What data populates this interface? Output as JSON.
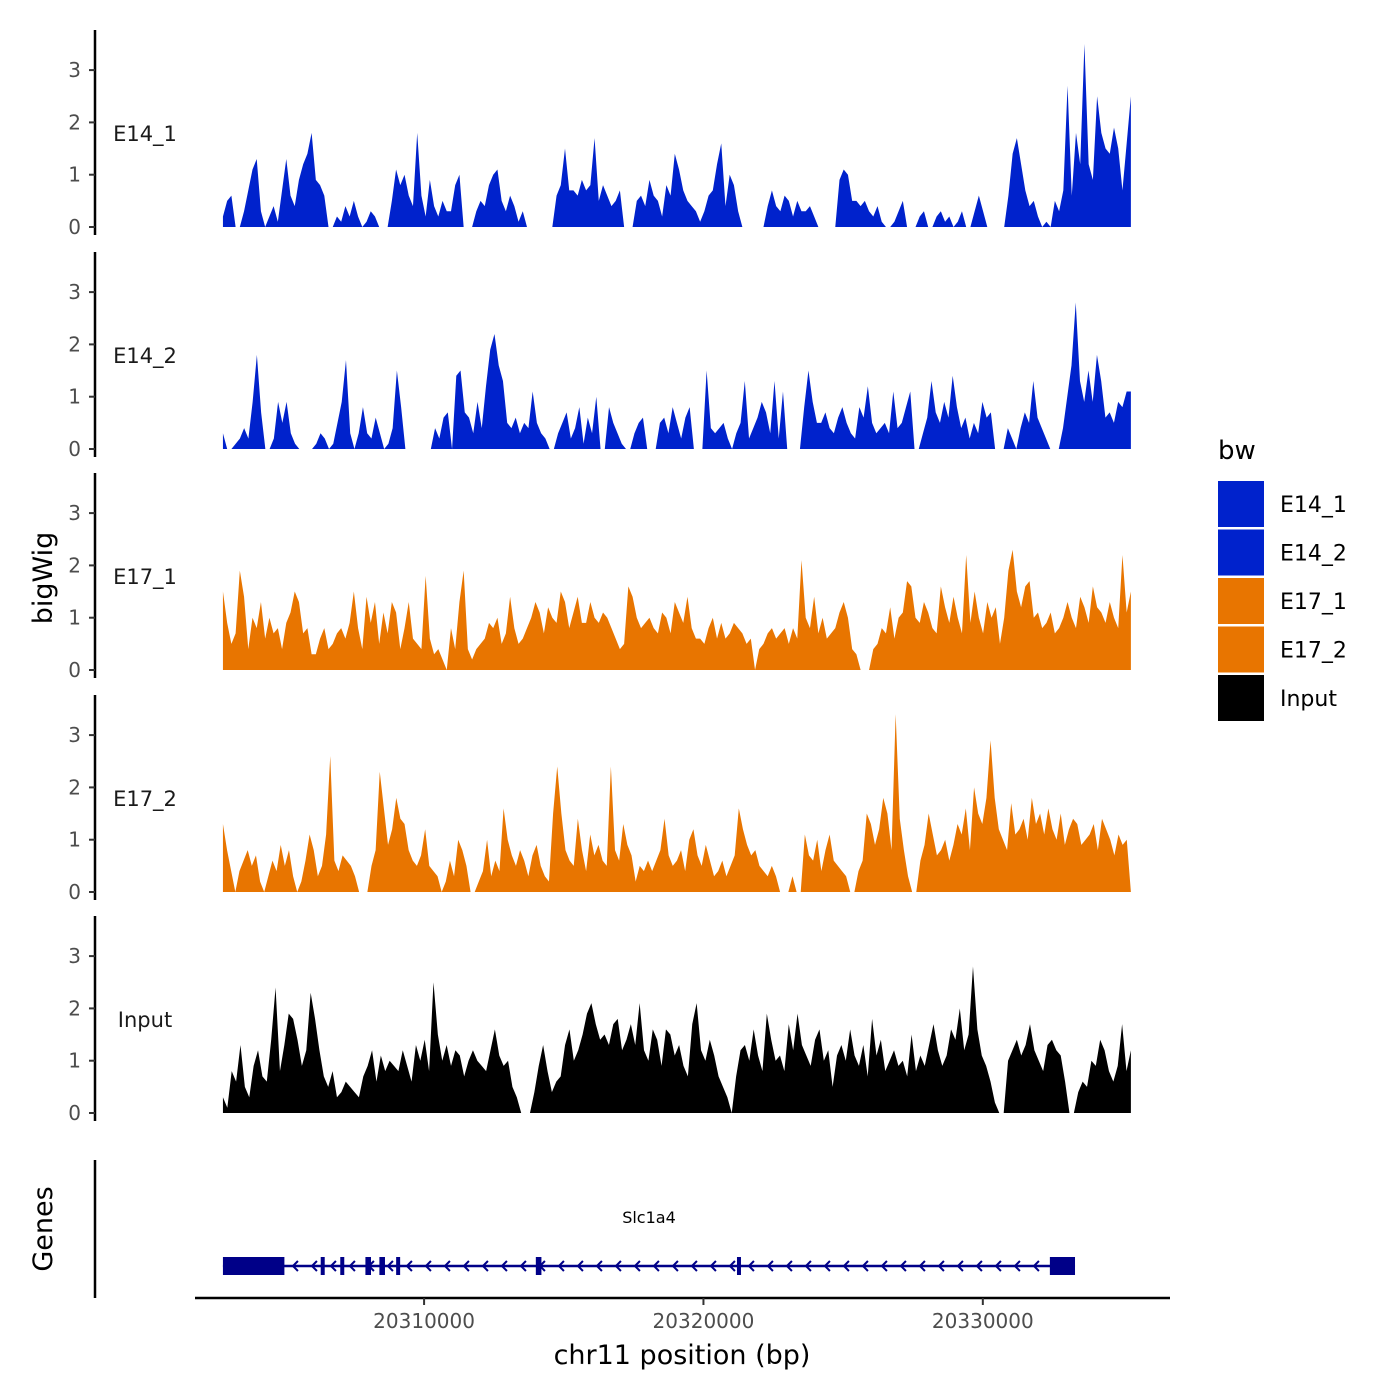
{
  "colors": {
    "E14": "#0022cc",
    "E17": "#e87500",
    "Input": "#000000",
    "gene": "#000088",
    "axis": "#000000",
    "tick_text": "#4d4d4d"
  },
  "chart_data": {
    "type": "area",
    "chromosome": "chr11",
    "xlabel": "chr11 position (bp)",
    "ylabel": "bigWig",
    "genes_label": "Genes",
    "xlim": [
      20301800,
      20336700
    ],
    "x_range_data": [
      20302800,
      20335300
    ],
    "x_ticks": [
      20310000,
      20320000,
      20330000
    ],
    "x_tick_labels": [
      "20310000",
      "20320000",
      "20330000"
    ],
    "ylim": [
      0,
      3.8
    ],
    "y_ticks": [
      0,
      1,
      2,
      3
    ],
    "y_tick_labels": [
      "0",
      "1",
      "2",
      "3"
    ],
    "legend": {
      "title": "bw",
      "entries": [
        {
          "label": "E14_1",
          "color": "#0022cc"
        },
        {
          "label": "E14_2",
          "color": "#0022cc"
        },
        {
          "label": "E17_1",
          "color": "#e87500"
        },
        {
          "label": "E17_2",
          "color": "#e87500"
        },
        {
          "label": "Input",
          "color": "#000000"
        }
      ]
    },
    "series": [
      {
        "name": "E14_1",
        "color": "#0022cc",
        "values": [
          0.2,
          0.5,
          0.6,
          0.0,
          0.0,
          0.3,
          0.7,
          1.1,
          1.3,
          0.3,
          0.0,
          0.2,
          0.4,
          0.1,
          0.7,
          1.3,
          0.6,
          0.4,
          0.9,
          1.2,
          1.4,
          1.8,
          0.9,
          0.8,
          0.6,
          0.0,
          0.0,
          0.2,
          0.1,
          0.4,
          0.2,
          0.5,
          0.2,
          0.0,
          0.1,
          0.3,
          0.2,
          0.0,
          0.0,
          0.0,
          0.5,
          1.1,
          0.8,
          1.0,
          0.6,
          0.4,
          1.8,
          0.6,
          0.2,
          0.9,
          0.4,
          0.2,
          0.5,
          0.3,
          0.3,
          0.8,
          1.0,
          0.0,
          0.0,
          0.0,
          0.3,
          0.5,
          0.4,
          0.8,
          1.0,
          1.1,
          0.5,
          0.3,
          0.6,
          0.4,
          0.1,
          0.3,
          0.0,
          0.0,
          0.0,
          0.0,
          0.0,
          0.0,
          0.0,
          0.6,
          0.8,
          1.5,
          0.7,
          0.7,
          0.6,
          0.9,
          0.7,
          0.8,
          1.7,
          0.5,
          0.8,
          0.6,
          0.4,
          0.5,
          0.7,
          0.0,
          0.0,
          0.0,
          0.5,
          0.6,
          0.4,
          0.9,
          0.6,
          0.5,
          0.2,
          0.8,
          0.6,
          1.4,
          1.1,
          0.7,
          0.5,
          0.4,
          0.3,
          0.1,
          0.3,
          0.6,
          0.7,
          1.2,
          1.6,
          0.4,
          1.0,
          0.8,
          0.3,
          0.0,
          0.0,
          0.0,
          0.0,
          0.0,
          0.0,
          0.4,
          0.7,
          0.4,
          0.3,
          0.6,
          0.5,
          0.2,
          0.5,
          0.3,
          0.3,
          0.4,
          0.2,
          0.0,
          0.0,
          0.0,
          0.0,
          0.0,
          0.9,
          1.1,
          1.0,
          0.5,
          0.5,
          0.4,
          0.5,
          0.3,
          0.2,
          0.4,
          0.1,
          0.0,
          0.0,
          0.1,
          0.3,
          0.5,
          0.0,
          0.0,
          0.0,
          0.2,
          0.3,
          0.0,
          0.0,
          0.2,
          0.3,
          0.1,
          0.2,
          0.0,
          0.1,
          0.3,
          0.0,
          0.0,
          0.3,
          0.6,
          0.3,
          0.0,
          0.0,
          0.0,
          0.0,
          0.0,
          0.6,
          1.4,
          1.7,
          1.2,
          0.7,
          0.4,
          0.5,
          0.2,
          0.0,
          0.1,
          0.0,
          0.5,
          0.3,
          0.7,
          2.7,
          0.6,
          1.8,
          1.2,
          3.5,
          1.2,
          0.9,
          2.5,
          1.8,
          1.5,
          1.4,
          1.9,
          1.5,
          0.7,
          1.6,
          2.5
        ],
        "area_breaks_count": 0
      },
      {
        "name": "E14_2",
        "color": "#0022cc",
        "values": [
          0.3,
          0.0,
          0.0,
          0.1,
          0.2,
          0.4,
          0.2,
          0.9,
          1.8,
          0.7,
          0.0,
          0.0,
          0.2,
          0.9,
          0.5,
          0.9,
          0.3,
          0.1,
          0.0,
          0.0,
          0.0,
          0.0,
          0.1,
          0.3,
          0.2,
          0.0,
          0.1,
          0.5,
          0.9,
          1.7,
          0.3,
          0.0,
          0.3,
          0.8,
          0.3,
          0.2,
          0.6,
          0.3,
          0.0,
          0.1,
          0.4,
          1.5,
          0.8,
          0.0,
          0.0,
          0.0,
          0.0,
          0.0,
          0.0,
          0.0,
          0.4,
          0.2,
          0.6,
          0.7,
          0.0,
          1.4,
          1.5,
          0.7,
          0.6,
          0.3,
          0.9,
          0.4,
          1.2,
          1.9,
          2.2,
          1.6,
          1.3,
          0.5,
          0.4,
          0.6,
          0.3,
          0.5,
          0.4,
          1.1,
          0.5,
          0.3,
          0.2,
          0.0,
          0.0,
          0.3,
          0.5,
          0.7,
          0.2,
          0.4,
          0.8,
          0.1,
          0.6,
          0.3,
          1.0,
          0.0,
          0.0,
          0.8,
          0.5,
          0.3,
          0.1,
          0.0,
          0.0,
          0.3,
          0.5,
          0.6,
          0.0,
          0.0,
          0.0,
          0.5,
          0.6,
          0.3,
          0.8,
          0.5,
          0.2,
          0.6,
          0.8,
          0.0,
          0.0,
          0.0,
          1.5,
          0.4,
          0.3,
          0.4,
          0.5,
          0.2,
          0.0,
          0.3,
          0.5,
          1.3,
          0.2,
          0.4,
          0.6,
          0.9,
          0.7,
          0.3,
          1.3,
          0.2,
          1.1,
          0.0,
          0.0,
          0.0,
          0.0,
          0.8,
          1.5,
          0.9,
          0.5,
          0.5,
          0.7,
          0.4,
          0.3,
          0.6,
          0.8,
          0.5,
          0.3,
          0.2,
          0.8,
          0.6,
          1.2,
          0.5,
          0.3,
          0.4,
          0.5,
          0.3,
          1.1,
          0.4,
          0.5,
          0.8,
          1.1,
          0.0,
          0.0,
          0.3,
          0.6,
          1.3,
          0.7,
          0.5,
          0.9,
          0.6,
          1.4,
          0.8,
          0.4,
          0.6,
          0.2,
          0.5,
          0.3,
          0.9,
          0.6,
          0.7,
          0.0,
          0.0,
          0.0,
          0.4,
          0.2,
          0.0,
          0.4,
          0.7,
          0.5,
          1.3,
          0.6,
          0.4,
          0.2,
          0.0,
          0.0,
          0.0,
          0.4,
          1.0,
          1.6,
          2.8,
          1.3,
          0.9,
          1.5,
          0.9,
          1.8,
          1.3,
          0.6,
          0.7,
          0.5,
          0.9,
          0.8,
          1.1,
          1.1
        ],
        "area_breaks_count": 0
      },
      {
        "name": "E17_1",
        "color": "#e87500",
        "values": [
          1.5,
          0.9,
          0.5,
          0.7,
          1.9,
          1.4,
          0.4,
          1.0,
          0.8,
          1.3,
          0.6,
          1.0,
          0.7,
          0.8,
          0.4,
          0.9,
          1.1,
          1.5,
          1.3,
          0.7,
          0.8,
          0.3,
          0.3,
          0.6,
          0.8,
          0.4,
          0.5,
          0.7,
          0.8,
          0.6,
          0.9,
          1.5,
          0.8,
          0.4,
          1.4,
          0.9,
          1.3,
          0.5,
          1.1,
          0.7,
          1.3,
          1.1,
          0.4,
          0.8,
          1.3,
          0.6,
          0.5,
          0.4,
          1.8,
          0.6,
          0.3,
          0.4,
          0.2,
          0.0,
          0.8,
          0.4,
          1.3,
          1.9,
          0.4,
          0.2,
          0.4,
          0.5,
          0.6,
          0.9,
          0.8,
          1.0,
          0.5,
          0.7,
          1.4,
          0.8,
          0.5,
          0.6,
          0.8,
          1.0,
          1.3,
          1.1,
          0.7,
          1.2,
          1.0,
          0.9,
          1.5,
          1.3,
          0.8,
          1.1,
          1.4,
          0.9,
          0.9,
          1.3,
          1.0,
          0.9,
          1.1,
          1.0,
          0.8,
          0.6,
          0.4,
          0.5,
          1.6,
          1.4,
          1.0,
          0.8,
          0.9,
          1.0,
          0.8,
          0.7,
          1.1,
          1.0,
          0.7,
          1.3,
          1.1,
          0.9,
          1.4,
          0.8,
          0.6,
          0.6,
          0.5,
          0.8,
          1.0,
          0.6,
          0.9,
          0.6,
          0.7,
          0.9,
          0.8,
          0.7,
          0.5,
          0.6,
          0.0,
          0.4,
          0.5,
          0.7,
          0.8,
          0.6,
          0.7,
          0.8,
          0.5,
          0.8,
          0.6,
          2.1,
          1.0,
          0.8,
          1.4,
          0.7,
          1.0,
          0.6,
          0.7,
          0.8,
          1.1,
          1.3,
          1.0,
          0.4,
          0.3,
          0.0,
          0.0,
          0.0,
          0.4,
          0.5,
          0.8,
          0.7,
          1.2,
          0.6,
          1.0,
          1.1,
          1.7,
          1.6,
          1.0,
          0.9,
          1.3,
          1.1,
          0.8,
          0.7,
          1.6,
          1.2,
          0.9,
          1.4,
          1.0,
          0.7,
          2.2,
          0.9,
          1.5,
          1.0,
          0.7,
          1.3,
          1.0,
          1.2,
          0.5,
          1.0,
          1.9,
          2.3,
          1.5,
          1.2,
          1.6,
          1.7,
          1.0,
          1.1,
          0.8,
          0.9,
          1.1,
          0.7,
          0.8,
          1.0,
          1.3,
          1.0,
          0.8,
          1.4,
          1.2,
          0.9,
          1.6,
          1.2,
          1.1,
          0.9,
          1.3,
          1.0,
          0.8,
          2.2,
          1.1,
          1.5
        ],
        "area_breaks_count": 0
      },
      {
        "name": "E17_2",
        "color": "#e87500",
        "values": [
          1.3,
          0.8,
          0.4,
          0.0,
          0.4,
          0.6,
          0.8,
          0.5,
          0.7,
          0.2,
          0.0,
          0.3,
          0.6,
          0.4,
          0.9,
          0.5,
          0.8,
          0.3,
          0.0,
          0.2,
          0.6,
          1.1,
          0.8,
          0.3,
          0.5,
          1.1,
          2.6,
          0.6,
          0.4,
          0.7,
          0.6,
          0.5,
          0.3,
          0.0,
          0.0,
          0.0,
          0.5,
          0.8,
          2.3,
          1.6,
          0.9,
          1.2,
          1.8,
          1.4,
          1.3,
          0.8,
          0.6,
          0.5,
          0.7,
          1.2,
          0.5,
          0.4,
          0.3,
          0.0,
          0.2,
          0.6,
          0.3,
          1.0,
          0.8,
          0.5,
          0.0,
          0.0,
          0.2,
          0.4,
          1.0,
          0.3,
          0.6,
          0.4,
          1.6,
          1.0,
          0.7,
          0.5,
          0.8,
          0.6,
          0.3,
          0.7,
          0.9,
          0.5,
          0.3,
          0.2,
          1.5,
          2.4,
          1.5,
          0.8,
          0.6,
          0.5,
          1.4,
          0.8,
          0.4,
          1.1,
          0.7,
          0.9,
          0.6,
          0.5,
          2.4,
          0.8,
          0.6,
          1.3,
          0.9,
          0.7,
          0.2,
          0.5,
          0.4,
          0.6,
          0.4,
          0.6,
          0.8,
          1.4,
          0.7,
          0.5,
          0.6,
          0.8,
          0.4,
          1.0,
          1.2,
          0.7,
          0.5,
          0.9,
          0.6,
          0.3,
          0.4,
          0.6,
          0.3,
          0.5,
          0.7,
          1.6,
          1.2,
          0.9,
          0.7,
          0.8,
          0.5,
          0.4,
          0.3,
          0.5,
          0.3,
          0.0,
          0.0,
          0.0,
          0.3,
          0.0,
          0.0,
          1.1,
          0.7,
          0.6,
          1.0,
          0.4,
          0.8,
          1.1,
          0.6,
          0.5,
          0.4,
          0.3,
          0.0,
          0.0,
          0.4,
          0.6,
          1.5,
          1.3,
          0.9,
          1.2,
          1.8,
          1.5,
          0.8,
          3.4,
          1.4,
          0.8,
          0.3,
          0.0,
          0.0,
          0.6,
          0.9,
          1.5,
          1.1,
          0.7,
          0.8,
          1.0,
          0.6,
          0.9,
          1.3,
          1.1,
          1.6,
          0.8,
          2.0,
          1.5,
          1.3,
          1.8,
          2.9,
          1.8,
          1.2,
          1.0,
          0.8,
          1.7,
          1.1,
          1.2,
          1.4,
          1.0,
          1.8,
          1.3,
          1.5,
          1.1,
          1.6,
          1.2,
          1.0,
          1.5,
          0.9,
          1.2,
          1.4,
          1.3,
          0.9,
          1.0,
          1.1,
          1.3,
          0.8,
          1.4,
          1.2,
          1.0,
          0.7,
          1.1,
          0.9,
          1.0,
          0.0
        ],
        "area_breaks_count": 0
      },
      {
        "name": "Input",
        "color": "#000000",
        "values": [
          0.3,
          0.1,
          0.8,
          0.6,
          1.3,
          0.5,
          0.3,
          0.9,
          1.2,
          0.7,
          0.6,
          1.4,
          2.4,
          0.8,
          1.3,
          1.9,
          1.8,
          1.4,
          0.9,
          1.2,
          2.3,
          1.8,
          1.2,
          0.7,
          0.5,
          0.8,
          0.3,
          0.4,
          0.6,
          0.5,
          0.4,
          0.3,
          0.7,
          0.9,
          1.2,
          0.6,
          1.1,
          0.8,
          1.0,
          0.9,
          0.8,
          1.2,
          0.9,
          0.6,
          1.3,
          1.0,
          1.4,
          0.8,
          2.5,
          1.5,
          1.0,
          1.3,
          0.9,
          1.2,
          1.1,
          0.7,
          1.0,
          1.2,
          1.0,
          0.9,
          0.8,
          1.2,
          1.6,
          1.1,
          0.9,
          1.0,
          0.5,
          0.3,
          0.0,
          0.0,
          0.0,
          0.4,
          0.9,
          1.3,
          0.8,
          0.4,
          0.6,
          0.7,
          1.3,
          1.6,
          1.0,
          1.2,
          1.5,
          1.9,
          2.1,
          1.7,
          1.4,
          1.5,
          1.3,
          1.7,
          1.8,
          1.2,
          1.4,
          1.7,
          1.3,
          2.1,
          1.2,
          1.0,
          1.6,
          1.4,
          0.9,
          1.6,
          1.5,
          1.1,
          1.3,
          0.9,
          0.7,
          1.7,
          2.1,
          1.2,
          1.0,
          1.4,
          1.1,
          0.7,
          0.5,
          0.3,
          0.0,
          0.7,
          1.2,
          1.3,
          1.0,
          1.6,
          1.1,
          0.8,
          1.9,
          1.4,
          1.0,
          1.1,
          0.8,
          1.7,
          1.2,
          1.9,
          1.3,
          1.1,
          0.9,
          1.4,
          1.6,
          1.0,
          1.2,
          0.5,
          1.1,
          1.3,
          1.0,
          1.6,
          1.1,
          0.9,
          1.3,
          0.7,
          1.8,
          1.1,
          1.4,
          0.8,
          1.0,
          1.2,
          0.9,
          1.0,
          0.7,
          1.5,
          0.8,
          1.1,
          0.9,
          1.3,
          1.7,
          1.2,
          0.9,
          1.1,
          1.6,
          1.4,
          2.0,
          1.2,
          1.5,
          2.8,
          1.6,
          1.1,
          0.9,
          0.6,
          0.2,
          0.0,
          0.0,
          1.0,
          1.2,
          1.4,
          1.1,
          1.3,
          1.7,
          1.2,
          1.0,
          0.8,
          1.3,
          1.4,
          1.2,
          1.1,
          0.6,
          0.0,
          0.0,
          0.4,
          0.6,
          0.5,
          1.0,
          0.9,
          1.4,
          1.2,
          0.8,
          0.6,
          0.9,
          1.7,
          0.8,
          1.2
        ],
        "area_breaks_count": 0
      }
    ],
    "gene": {
      "name": "Slc1a4",
      "start": 20302800,
      "end": 20333300,
      "strand": "-",
      "exons": [
        [
          20302800,
          20305000
        ],
        [
          20306300,
          20306400
        ],
        [
          20307000,
          20307100
        ],
        [
          20307900,
          20308100
        ],
        [
          20308400,
          20308600
        ],
        [
          20309000,
          20309100
        ],
        [
          20314000,
          20314200
        ],
        [
          20321200,
          20321300
        ],
        [
          20332400,
          20333300
        ]
      ]
    }
  }
}
